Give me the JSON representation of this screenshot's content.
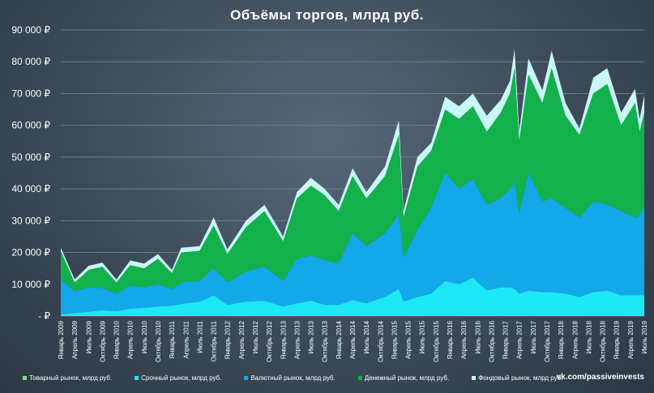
{
  "chart_data": {
    "type": "area",
    "stacked": true,
    "title": "Объёмы торгов, млрд руб.",
    "xlabel": "",
    "ylabel": "",
    "ylim": [
      0,
      90000
    ],
    "grid": true,
    "legend_position": "bottom",
    "y_ticks": [
      {
        "value": 0,
        "label": "-   ₽"
      },
      {
        "value": 10000,
        "label": "10 000 ₽"
      },
      {
        "value": 20000,
        "label": "20 000 ₽"
      },
      {
        "value": 30000,
        "label": "30 000 ₽"
      },
      {
        "value": 40000,
        "label": "40 000 ₽"
      },
      {
        "value": 50000,
        "label": "50 000 ₽"
      },
      {
        "value": 60000,
        "label": "60 000 ₽"
      },
      {
        "value": 70000,
        "label": "70 000 ₽"
      },
      {
        "value": 80000,
        "label": "80 000 ₽"
      },
      {
        "value": 90000,
        "label": "90 000 ₽"
      }
    ],
    "x_tick_labels": [
      "Январь 2009",
      "Апрель 2009",
      "Июль 2009",
      "Октябрь 2009",
      "Январь 2010",
      "Апрель 2010",
      "Июль 2010",
      "Октябрь 2010",
      "Январь 2011",
      "Апрель 2011",
      "Июль 2011",
      "Октябрь 2011",
      "Январь 2012",
      "Апрель 2012",
      "Июль 2012",
      "Октябрь 2012",
      "Январь 2013",
      "Апрель 2013",
      "Июль 2013",
      "Октябрь 2013",
      "Январь 2014",
      "Апрель 2014",
      "Июль 2014",
      "Октябрь 2014",
      "Январь 2015",
      "Апрель 2015",
      "Июль 2015",
      "Октябрь 2015",
      "Январь 2016",
      "Апрель 2016",
      "Июль 2016",
      "Октябрь 2016",
      "Январь 2017",
      "Апрель 2017",
      "Июль 2017",
      "Октябрь 2017",
      "Январь 2018",
      "Апрель 2018",
      "Июль 2018",
      "Октябрь 2018",
      "Январь 2019",
      "Апрель 2019",
      "Июль 2019"
    ],
    "x_tick_every_n_points": 3,
    "point_count": 127,
    "cumulative_keypoints": [
      {
        "i": 0,
        "srochny": 500,
        "valyutny": 11500,
        "denezhny": 20500,
        "fondovy": 21500
      },
      {
        "i": 3,
        "srochny": 900,
        "valyutny": 7800,
        "denezhny": 10500,
        "fondovy": 11500
      },
      {
        "i": 6,
        "srochny": 1300,
        "valyutny": 9000,
        "denezhny": 14500,
        "fondovy": 15800
      },
      {
        "i": 9,
        "srochny": 1800,
        "valyutny": 8800,
        "denezhny": 15500,
        "fondovy": 16800
      },
      {
        "i": 12,
        "srochny": 1500,
        "valyutny": 7000,
        "denezhny": 10500,
        "fondovy": 11500
      },
      {
        "i": 15,
        "srochny": 2300,
        "valyutny": 9500,
        "denezhny": 16000,
        "fondovy": 17500
      },
      {
        "i": 18,
        "srochny": 2600,
        "valyutny": 9000,
        "denezhny": 15000,
        "fondovy": 16500
      },
      {
        "i": 21,
        "srochny": 3000,
        "valyutny": 10000,
        "denezhny": 18000,
        "fondovy": 19500
      },
      {
        "i": 24,
        "srochny": 3200,
        "valyutny": 8500,
        "denezhny": 13500,
        "fondovy": 14500
      },
      {
        "i": 26,
        "srochny": 3800,
        "valyutny": 10500,
        "denezhny": 20000,
        "fondovy": 21500
      },
      {
        "i": 30,
        "srochny": 4500,
        "valyutny": 11000,
        "denezhny": 20500,
        "fondovy": 22000
      },
      {
        "i": 33,
        "srochny": 6500,
        "valyutny": 15000,
        "denezhny": 28500,
        "fondovy": 31000
      },
      {
        "i": 36,
        "srochny": 3500,
        "valyutny": 10500,
        "denezhny": 19500,
        "fondovy": 21000
      },
      {
        "i": 40,
        "srochny": 4500,
        "valyutny": 14000,
        "denezhny": 28000,
        "fondovy": 30000
      },
      {
        "i": 44,
        "srochny": 4800,
        "valyutny": 15500,
        "denezhny": 33000,
        "fondovy": 35000
      },
      {
        "i": 48,
        "srochny": 3000,
        "valyutny": 11000,
        "denezhny": 23500,
        "fondovy": 25000
      },
      {
        "i": 51,
        "srochny": 4000,
        "valyutny": 18000,
        "denezhny": 37000,
        "fondovy": 39000
      },
      {
        "i": 54,
        "srochny": 4800,
        "valyutny": 19000,
        "denezhny": 41000,
        "fondovy": 43500
      },
      {
        "i": 57,
        "srochny": 3500,
        "valyutny": 17500,
        "denezhny": 38000,
        "fondovy": 40000
      },
      {
        "i": 60,
        "srochny": 3500,
        "valyutny": 16500,
        "denezhny": 33000,
        "fondovy": 35000
      },
      {
        "i": 63,
        "srochny": 5000,
        "valyutny": 26000,
        "denezhny": 44000,
        "fondovy": 46500
      },
      {
        "i": 66,
        "srochny": 4000,
        "valyutny": 22000,
        "denezhny": 37000,
        "fondovy": 39000
      },
      {
        "i": 70,
        "srochny": 6000,
        "valyutny": 26000,
        "denezhny": 44000,
        "fondovy": 47000
      },
      {
        "i": 73,
        "srochny": 8500,
        "valyutny": 32000,
        "denezhny": 57000,
        "fondovy": 61500
      },
      {
        "i": 74,
        "srochny": 4500,
        "valyutny": 18500,
        "denezhny": 31000,
        "fondovy": 33000
      },
      {
        "i": 77,
        "srochny": 6000,
        "valyutny": 27000,
        "denezhny": 47000,
        "fondovy": 50000
      },
      {
        "i": 80,
        "srochny": 7000,
        "valyutny": 34000,
        "denezhny": 52000,
        "fondovy": 54500
      },
      {
        "i": 83,
        "srochny": 11000,
        "valyutny": 45000,
        "denezhny": 65000,
        "fondovy": 69000
      },
      {
        "i": 86,
        "srochny": 10000,
        "valyutny": 40000,
        "denezhny": 62000,
        "fondovy": 66000
      },
      {
        "i": 89,
        "srochny": 12000,
        "valyutny": 43000,
        "denezhny": 66000,
        "fondovy": 70000
      },
      {
        "i": 92,
        "srochny": 8000,
        "valyutny": 35000,
        "denezhny": 58000,
        "fondovy": 63000
      },
      {
        "i": 95,
        "srochny": 9000,
        "valyutny": 37000,
        "denezhny": 64000,
        "fondovy": 68000
      },
      {
        "i": 97,
        "srochny": 9000,
        "valyutny": 40000,
        "denezhny": 70000,
        "fondovy": 74000
      },
      {
        "i": 98,
        "srochny": 8500,
        "valyutny": 42000,
        "denezhny": 78000,
        "fondovy": 84000
      },
      {
        "i": 99,
        "srochny": 7000,
        "valyutny": 32000,
        "denezhny": 55000,
        "fondovy": 58000
      },
      {
        "i": 101,
        "srochny": 8000,
        "valyutny": 45000,
        "denezhny": 76000,
        "fondovy": 81000
      },
      {
        "i": 104,
        "srochny": 7500,
        "valyutny": 36000,
        "denezhny": 67000,
        "fondovy": 71000
      },
      {
        "i": 106,
        "srochny": 7500,
        "valyutny": 37000,
        "denezhny": 78000,
        "fondovy": 83500
      },
      {
        "i": 109,
        "srochny": 7000,
        "valyutny": 34000,
        "denezhny": 63000,
        "fondovy": 67000
      },
      {
        "i": 112,
        "srochny": 6000,
        "valyutny": 31000,
        "denezhny": 57000,
        "fondovy": 59000
      },
      {
        "i": 115,
        "srochny": 7500,
        "valyutny": 36000,
        "denezhny": 70000,
        "fondovy": 75000
      },
      {
        "i": 118,
        "srochny": 8000,
        "valyutny": 35000,
        "denezhny": 73000,
        "fondovy": 78000
      },
      {
        "i": 121,
        "srochny": 6500,
        "valyutny": 33000,
        "denezhny": 60000,
        "fondovy": 64000
      },
      {
        "i": 124,
        "srochny": 6500,
        "valyutny": 31000,
        "denezhny": 67000,
        "fondovy": 71500
      },
      {
        "i": 125,
        "srochny": 6500,
        "valyutny": 31500,
        "denezhny": 58000,
        "fondovy": 62000
      },
      {
        "i": 126,
        "srochny": 6500,
        "valyutny": 35000,
        "denezhny": 64000,
        "fondovy": 69500
      }
    ],
    "series": [
      {
        "key": "tovarny",
        "name": "Товарный рынок, млрд руб.",
        "color": "#7ee081"
      },
      {
        "key": "srochny",
        "name": "Срочный рынок, млрд руб.",
        "color": "#1de9f6"
      },
      {
        "key": "valyutny",
        "name": "Валютный рынок, млрд руб.",
        "color": "#13a8ea"
      },
      {
        "key": "denezhny",
        "name": "Денежный рынок, млрд руб.",
        "color": "#12b14b"
      },
      {
        "key": "fondovy",
        "name": "Фондовый рынок, млрд руб.",
        "color": "#c8f8f6"
      }
    ],
    "source_text": "vk.com/passiveinvests"
  }
}
